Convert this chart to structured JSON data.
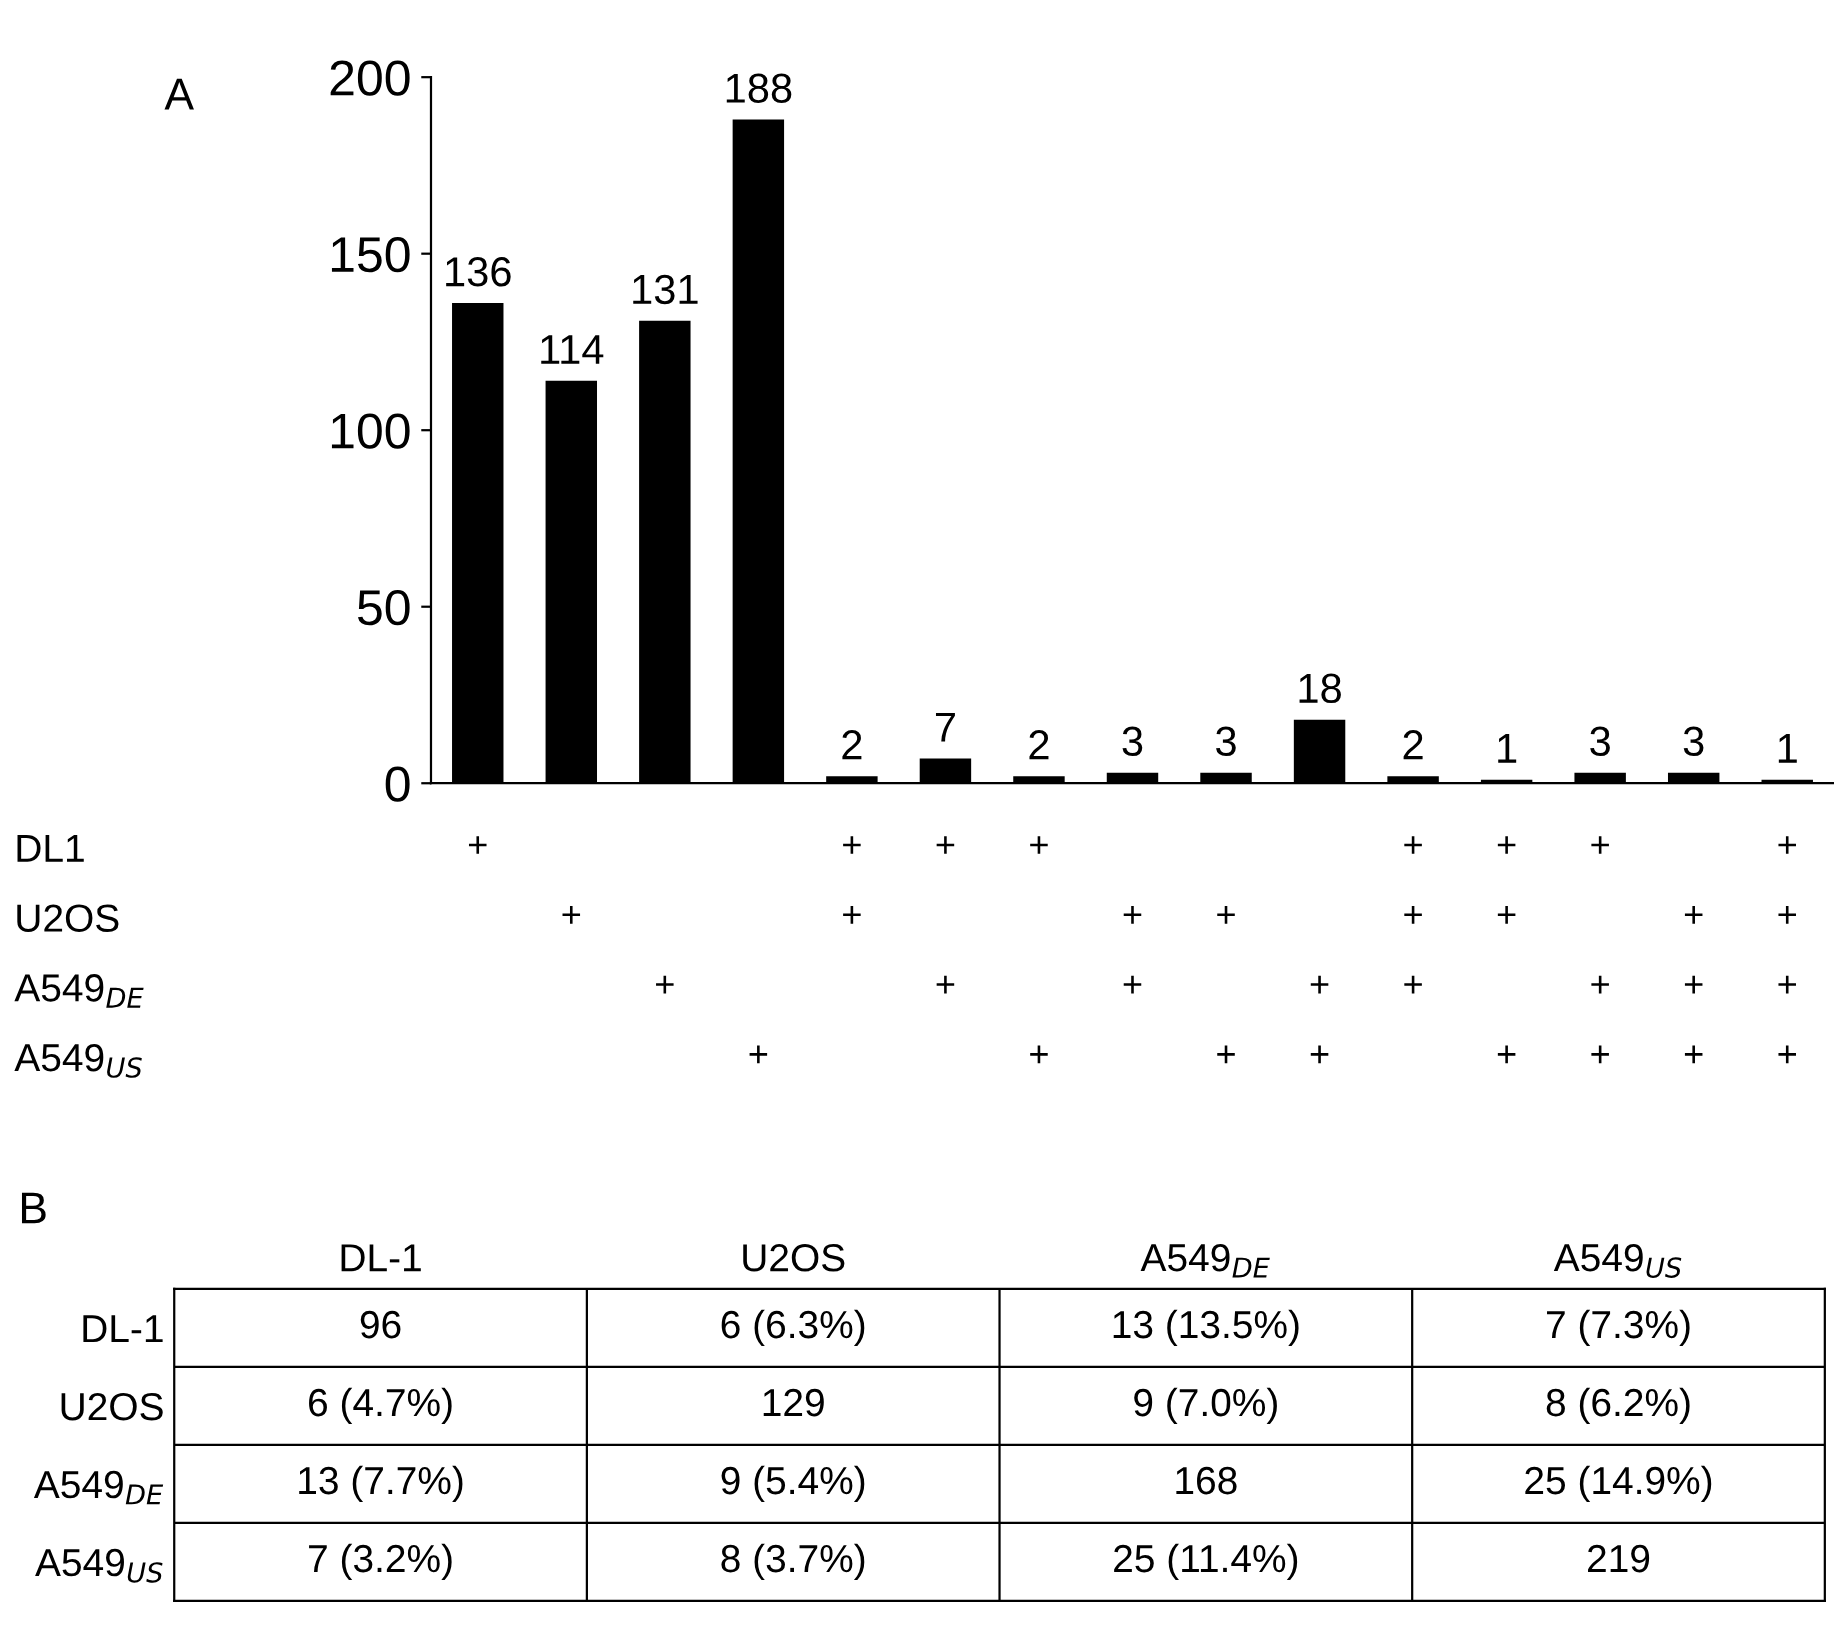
{
  "chart_data": [
    {
      "type": "bar",
      "title": "A",
      "categories": [
        null,
        null,
        null,
        null,
        null,
        null,
        null,
        null,
        null,
        null,
        null,
        null,
        null,
        null,
        null
      ],
      "values": [
        136,
        114,
        131,
        188,
        2,
        7,
        2,
        3,
        3,
        18,
        2,
        1,
        3,
        3,
        1
      ],
      "color": "#000000",
      "data_labels": true,
      "ylim": [
        0,
        200
      ],
      "yticks": [
        0,
        50,
        100,
        150,
        200
      ],
      "grid": false
    },
    {
      "type": "other",
      "categories": [
        null,
        null,
        null,
        null,
        null,
        null,
        null,
        null,
        null,
        null,
        null,
        null,
        null,
        null,
        null
      ],
      "y_categories": [
        "DL1",
        "U2OS",
        "A549$_{DE}$",
        "A549$_{US}$"
      ],
      "cell_labels": [
        [
          "+",
          null,
          null,
          null,
          "+",
          "+",
          "+",
          null,
          null,
          null,
          "+",
          "+",
          "+",
          null,
          "+"
        ],
        [
          null,
          "+",
          null,
          null,
          "+",
          null,
          null,
          "+",
          "+",
          null,
          "+",
          "+",
          null,
          "+",
          "+"
        ],
        [
          null,
          null,
          "+",
          null,
          null,
          "+",
          null,
          "+",
          null,
          "+",
          "+",
          null,
          "+",
          "+",
          "+"
        ],
        [
          null,
          null,
          null,
          "+",
          null,
          null,
          "+",
          null,
          "+",
          "+",
          null,
          "+",
          "+",
          "+",
          "+"
        ]
      ]
    },
    {
      "type": "other",
      "title": "B",
      "categories": [
        "DL-1",
        "U2OS",
        "A549$_{DE}$",
        "A549$_{US}$"
      ],
      "y_categories": [
        "DL-1",
        "U2OS",
        "A549$_{DE}$",
        "A549$_{US}$"
      ],
      "cell_labels": [
        [
          "96",
          "6 (6.3%)",
          "13 (13.5%)",
          "7 (7.3%)"
        ],
        [
          "6 (4.7%)",
          "129",
          "9 (7.0%)",
          "8 (6.2%)"
        ],
        [
          "13 (7.7%)",
          "9 (5.4%)",
          "168",
          "25 (14.9%)"
        ],
        [
          "7 (3.2%)",
          "8 (3.7%)",
          "25 (11.4%)",
          "219"
        ]
      ]
    }
  ]
}
